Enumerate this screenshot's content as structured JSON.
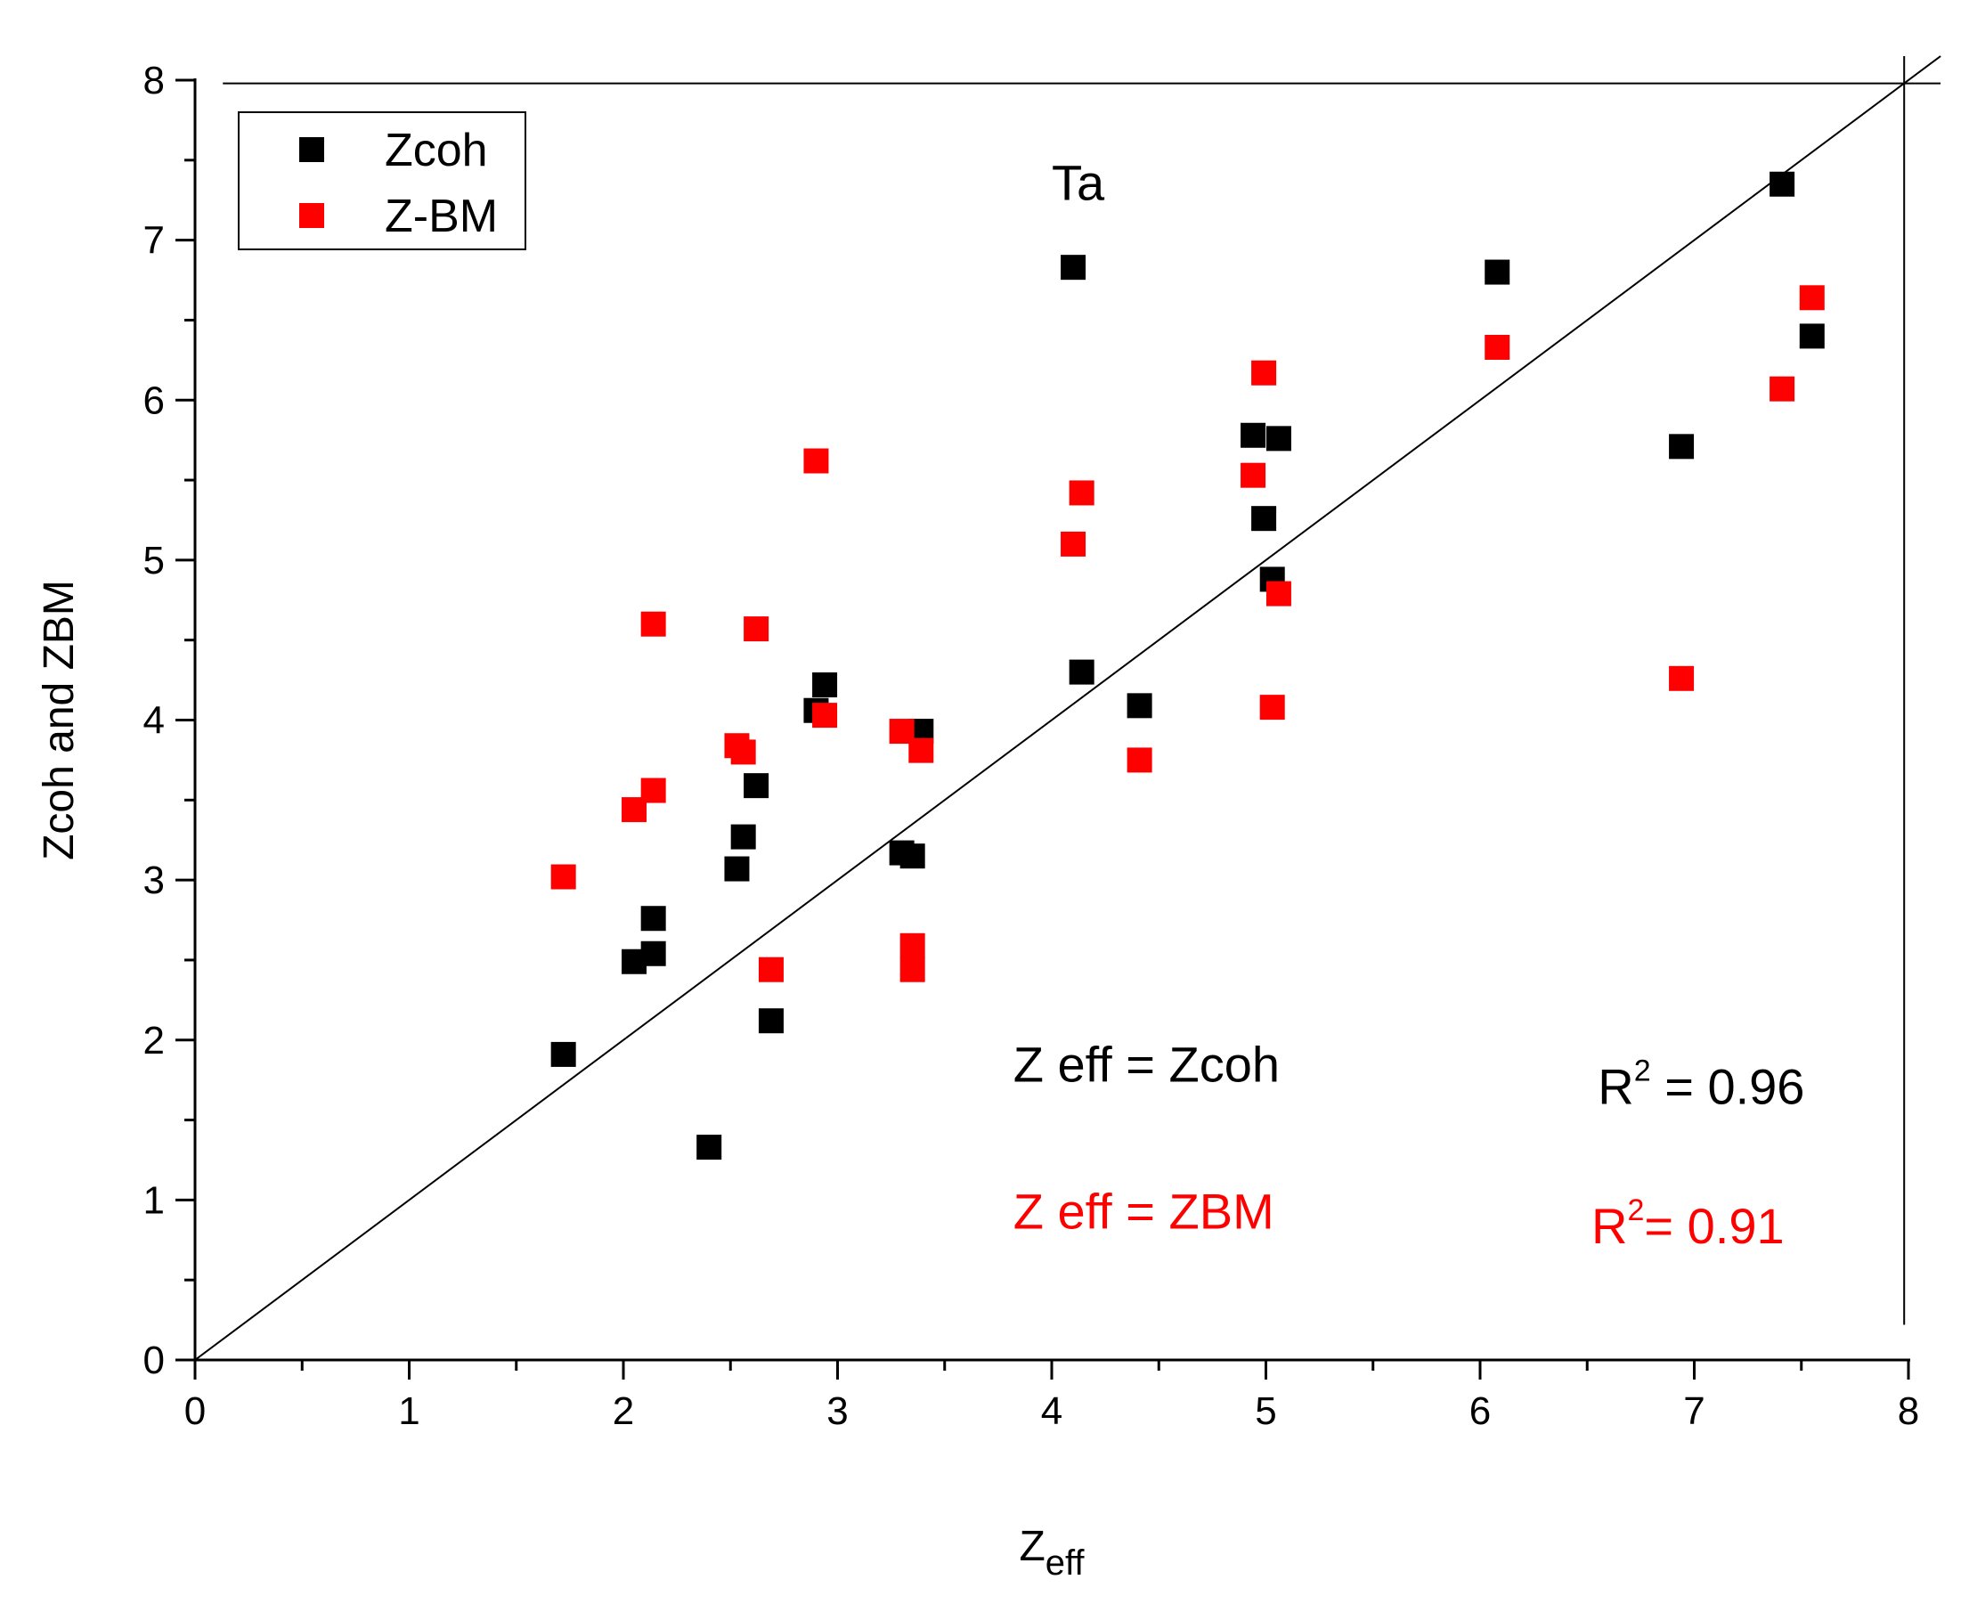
{
  "chart_data": {
    "type": "scatter",
    "title": "",
    "xlabel": "Z",
    "xlabel_sub": "eff",
    "ylabel": "Zcoh and ZBM",
    "xlim": [
      0,
      8
    ],
    "ylim": [
      0,
      8
    ],
    "x_ticks": [
      "0",
      "1",
      "2",
      "3",
      "4",
      "5",
      "6",
      "7",
      "8"
    ],
    "y_ticks": [
      "0",
      "1",
      "2",
      "3",
      "4",
      "5",
      "6",
      "7",
      "8"
    ],
    "reference_lines": [
      {
        "name": "identity",
        "from": [
          0,
          0
        ],
        "to": [
          8.15,
          8.15
        ]
      },
      {
        "name": "horizontal-at-8",
        "y": 7.98,
        "x_from": 0.13,
        "x_to": 8.15
      },
      {
        "name": "vertical-at-8",
        "x": 7.98,
        "y_from": 0.22,
        "y_to": 8.15
      }
    ],
    "legend": {
      "position": "top-left",
      "entries": [
        {
          "label": "Zcoh",
          "color": "#000000"
        },
        {
          "label": "Z-BM",
          "color": "#ff0000"
        }
      ]
    },
    "series": [
      {
        "name": "Zcoh",
        "color": "#000000",
        "points": [
          [
            1.72,
            1.91
          ],
          [
            2.05,
            2.49
          ],
          [
            2.14,
            2.54
          ],
          [
            2.14,
            2.76
          ],
          [
            2.4,
            1.33
          ],
          [
            2.53,
            3.07
          ],
          [
            2.56,
            3.27
          ],
          [
            2.62,
            3.59
          ],
          [
            2.69,
            2.12
          ],
          [
            2.9,
            4.06
          ],
          [
            2.94,
            4.22
          ],
          [
            3.3,
            3.17
          ],
          [
            3.35,
            3.15
          ],
          [
            3.39,
            3.93
          ],
          [
            4.1,
            6.83
          ],
          [
            4.14,
            4.3
          ],
          [
            4.41,
            4.09
          ],
          [
            4.94,
            5.78
          ],
          [
            4.99,
            5.26
          ],
          [
            5.03,
            4.88
          ],
          [
            5.06,
            5.76
          ],
          [
            6.08,
            6.8
          ],
          [
            6.94,
            5.71
          ],
          [
            7.41,
            7.35
          ],
          [
            7.55,
            6.4
          ]
        ]
      },
      {
        "name": "Z-BM",
        "color": "#ff0000",
        "points": [
          [
            1.72,
            3.02
          ],
          [
            2.05,
            3.44
          ],
          [
            2.14,
            4.6
          ],
          [
            2.14,
            3.56
          ],
          [
            2.53,
            3.84
          ],
          [
            2.56,
            3.8
          ],
          [
            2.62,
            4.57
          ],
          [
            2.69,
            2.44
          ],
          [
            2.9,
            5.62
          ],
          [
            2.94,
            4.03
          ],
          [
            3.3,
            3.93
          ],
          [
            3.35,
            2.59
          ],
          [
            3.35,
            2.44
          ],
          [
            3.39,
            3.81
          ],
          [
            4.1,
            5.1
          ],
          [
            4.14,
            5.42
          ],
          [
            4.41,
            3.75
          ],
          [
            4.94,
            5.53
          ],
          [
            4.99,
            6.17
          ],
          [
            5.03,
            4.08
          ],
          [
            5.06,
            4.79
          ],
          [
            6.08,
            6.33
          ],
          [
            6.94,
            4.26
          ],
          [
            7.41,
            6.07
          ],
          [
            7.55,
            6.64
          ]
        ]
      }
    ],
    "annotations": [
      {
        "name": "label-ta",
        "text": "Ta",
        "color": "#000000",
        "at": [
          4.0,
          7.25
        ]
      },
      {
        "name": "label-zeff-zcoh",
        "text": "Z eff = Zcoh",
        "color": "#000000",
        "at": [
          3.82,
          1.74
        ]
      },
      {
        "name": "label-zeff-zbm",
        "text": "Z eff = ZBM",
        "color": "#ff0000",
        "at": [
          3.82,
          0.82
        ]
      }
    ],
    "r_squared": [
      {
        "name": "r2-zcoh",
        "prefix": "R",
        "sup": "2",
        "value": " = 0.96",
        "color": "#000000",
        "at": [
          6.55,
          1.6
        ]
      },
      {
        "name": "r2-zbm",
        "prefix": "R",
        "sup": "2",
        "value": "= 0.91",
        "color": "#ff0000",
        "at": [
          6.52,
          0.73
        ]
      }
    ]
  }
}
